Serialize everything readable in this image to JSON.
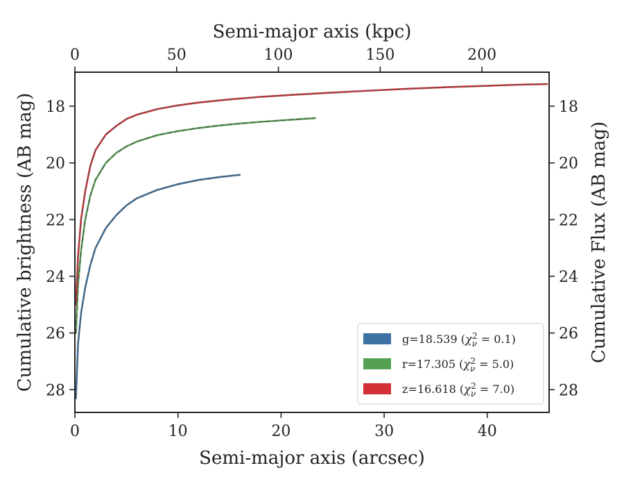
{
  "chart_data": {
    "type": "line",
    "xlabel": "Semi-major axis (arcsec)",
    "x2label": "Semi-major axis (kpc)",
    "ylabel": "Cumulative brightness (AB mag)",
    "y2label": "Cumulative Flux (AB mag)",
    "xlim": [
      0,
      46
    ],
    "x2lim": [
      0,
      233
    ],
    "ylim": [
      28.8,
      16.8
    ],
    "y_inverted": true,
    "xticks": [
      0,
      10,
      20,
      30,
      40
    ],
    "x2ticks": [
      0,
      50,
      100,
      150,
      200
    ],
    "yticks": [
      18,
      20,
      22,
      24,
      26,
      28
    ],
    "grid": false,
    "legend_position": "bottom-right",
    "series": [
      {
        "band": "g",
        "total": "18.539",
        "chi2": "0.1",
        "color": "#3d72a4",
        "x": [
          0.1,
          0.3,
          0.6,
          1.0,
          1.5,
          2.0,
          3.0,
          4.0,
          5.0,
          6.0,
          8.0,
          10.0,
          12.0,
          14.0,
          16.0
        ],
        "y": [
          28.3,
          26.4,
          25.3,
          24.4,
          23.6,
          23.0,
          22.3,
          21.85,
          21.5,
          21.25,
          20.95,
          20.75,
          20.6,
          20.5,
          20.42
        ]
      },
      {
        "band": "r",
        "total": "17.305",
        "chi2": "5.0",
        "color": "#55a052",
        "x": [
          0.1,
          0.3,
          0.6,
          1.0,
          1.5,
          2.0,
          3.0,
          4.0,
          5.0,
          6.0,
          8.0,
          10.0,
          12.0,
          14.0,
          16.0,
          18.0,
          20.0,
          22.0,
          23.3
        ],
        "y": [
          26.0,
          24.3,
          23.1,
          22.0,
          21.15,
          20.6,
          20.0,
          19.65,
          19.42,
          19.25,
          19.02,
          18.88,
          18.77,
          18.68,
          18.61,
          18.55,
          18.5,
          18.45,
          18.42
        ]
      },
      {
        "band": "z",
        "total": "16.618",
        "chi2": "7.0",
        "color": "#d03036",
        "x": [
          0.1,
          0.3,
          0.6,
          1.0,
          1.5,
          2.0,
          3.0,
          4.0,
          5.0,
          6.0,
          8.0,
          10.0,
          12.0,
          15.0,
          18.0,
          21.0,
          24.0,
          28.0,
          32.0,
          36.0,
          40.0,
          43.0,
          45.8
        ],
        "y": [
          25.0,
          23.3,
          22.0,
          21.0,
          20.1,
          19.55,
          19.0,
          18.7,
          18.45,
          18.3,
          18.1,
          17.97,
          17.87,
          17.76,
          17.67,
          17.6,
          17.54,
          17.46,
          17.39,
          17.33,
          17.28,
          17.24,
          17.22
        ]
      }
    ]
  },
  "legend": {
    "entries": [
      {
        "band": "g",
        "total": "18.539",
        "chi2": "0.1",
        "color": "#3d72a4"
      },
      {
        "band": "r",
        "total": "17.305",
        "chi2": "5.0",
        "color": "#55a052"
      },
      {
        "band": "z",
        "total": "16.618",
        "chi2": "7.0",
        "color": "#d03036"
      }
    ]
  }
}
